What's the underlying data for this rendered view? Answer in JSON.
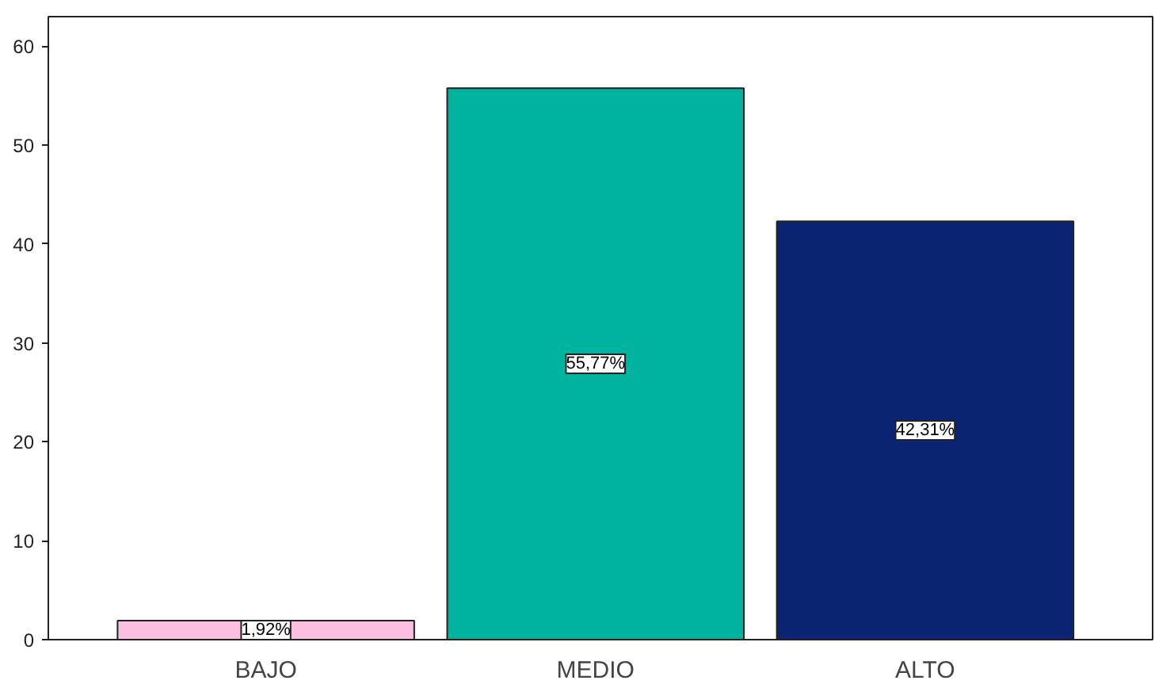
{
  "chart_data": {
    "type": "bar",
    "categories": [
      "BAJO",
      "MEDIO",
      "ALTO"
    ],
    "values": [
      1.92,
      55.77,
      42.31
    ],
    "colors": [
      "#fbbfe0",
      "#00b39f",
      "#0a2472"
    ],
    "value_labels": [
      "1,92%",
      "55,77%",
      "42,31%"
    ],
    "ylim": [
      0,
      63
    ],
    "yticks": [
      0,
      10,
      20,
      30,
      40,
      50,
      60
    ]
  }
}
